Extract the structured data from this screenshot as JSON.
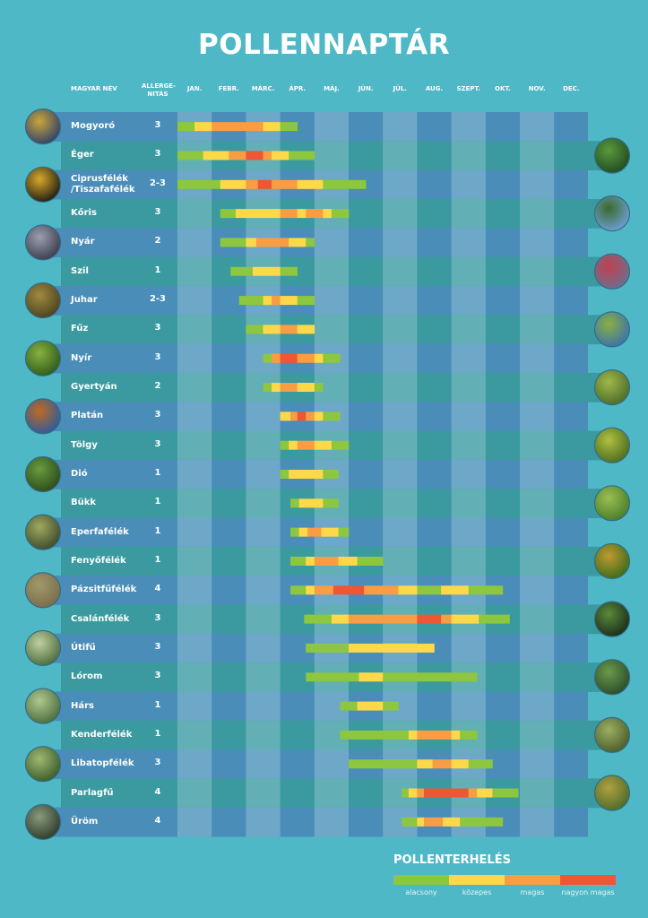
{
  "title": "POLLENNAPTÁR",
  "headers": {
    "name": "MAGYAR NÉV",
    "allergen_line1": "ALLERGE-",
    "allergen_line2": "NITÁS"
  },
  "colors": {
    "background": "#4fb8c6",
    "low": "#8dc63f",
    "medium": "#fdd94a",
    "high": "#f99d44",
    "very_high": "#ef5634"
  },
  "chart_data": {
    "type": "table",
    "title": "POLLENNAPTÁR",
    "months": [
      "JAN.",
      "FEBR.",
      "MÁRC.",
      "ÁPR.",
      "MÁJ.",
      "JÚN.",
      "JÚL.",
      "AUG.",
      "SZEPT.",
      "OKT.",
      "NOV.",
      "DEC."
    ],
    "level_names": [
      "alacsony",
      "közepes",
      "magas",
      "nagyon magas"
    ],
    "rows": [
      {
        "name": "Mogyoró",
        "allergenity": "3",
        "segments": [
          [
            0,
            0.5,
            1
          ],
          [
            0.5,
            1,
            2
          ],
          [
            1,
            2.5,
            3
          ],
          [
            2.5,
            3,
            2
          ],
          [
            3,
            3.5,
            1
          ]
        ]
      },
      {
        "name": "Éger",
        "allergenity": "3",
        "segments": [
          [
            0,
            0.75,
            1
          ],
          [
            0.75,
            1.5,
            2
          ],
          [
            1.5,
            2,
            3
          ],
          [
            2,
            2.5,
            4
          ],
          [
            2.5,
            2.75,
            3
          ],
          [
            2.75,
            3.25,
            2
          ],
          [
            3.25,
            4,
            1
          ]
        ]
      },
      {
        "name": "Ciprusfélék\n/Tiszafafélék",
        "allergenity": "2-3",
        "segments": [
          [
            0,
            1.25,
            1
          ],
          [
            1.25,
            2,
            2
          ],
          [
            2,
            2.35,
            3
          ],
          [
            2.35,
            2.75,
            4
          ],
          [
            2.75,
            3.5,
            3
          ],
          [
            3.5,
            4.25,
            2
          ],
          [
            4.25,
            5.5,
            1
          ]
        ]
      },
      {
        "name": "Kőris",
        "allergenity": "3",
        "segments": [
          [
            1.25,
            1.7,
            1
          ],
          [
            1.7,
            3,
            2
          ],
          [
            3,
            3.5,
            3
          ],
          [
            3.5,
            3.75,
            2
          ],
          [
            3.75,
            4.25,
            3
          ],
          [
            4.25,
            4.5,
            2
          ],
          [
            4.5,
            5,
            1
          ]
        ]
      },
      {
        "name": "Nyár",
        "allergenity": "2",
        "segments": [
          [
            1.25,
            2,
            1
          ],
          [
            2,
            2.3,
            2
          ],
          [
            2.3,
            3.25,
            3
          ],
          [
            3.25,
            3.75,
            2
          ],
          [
            3.75,
            4,
            1
          ]
        ]
      },
      {
        "name": "Szil",
        "allergenity": "1",
        "segments": [
          [
            1.55,
            2.2,
            1
          ],
          [
            2.2,
            3,
            2
          ],
          [
            3,
            3.5,
            1
          ]
        ]
      },
      {
        "name": "Juhar",
        "allergenity": "2-3",
        "segments": [
          [
            1.8,
            2.5,
            1
          ],
          [
            2.5,
            2.75,
            2
          ],
          [
            2.75,
            3,
            3
          ],
          [
            3,
            3.5,
            2
          ],
          [
            3.5,
            4,
            1
          ]
        ]
      },
      {
        "name": "Fűz",
        "allergenity": "3",
        "segments": [
          [
            2,
            2.5,
            1
          ],
          [
            2.5,
            3,
            2
          ],
          [
            3,
            3.5,
            3
          ],
          [
            3.5,
            4,
            2
          ]
        ]
      },
      {
        "name": "Nyír",
        "allergenity": "3",
        "segments": [
          [
            2.5,
            2.75,
            1
          ],
          [
            2.75,
            3,
            3
          ],
          [
            3,
            3.5,
            4
          ],
          [
            3.5,
            4,
            3
          ],
          [
            4,
            4.25,
            2
          ],
          [
            4.25,
            4.75,
            1
          ]
        ]
      },
      {
        "name": "Gyertyán",
        "allergenity": "2",
        "segments": [
          [
            2.5,
            2.75,
            1
          ],
          [
            2.75,
            3,
            2
          ],
          [
            3,
            3.5,
            3
          ],
          [
            3.5,
            4,
            2
          ],
          [
            4,
            4.25,
            1
          ]
        ]
      },
      {
        "name": "Platán",
        "allergenity": "3",
        "segments": [
          [
            3,
            3.3,
            2
          ],
          [
            3.3,
            3.5,
            3
          ],
          [
            3.5,
            3.75,
            4
          ],
          [
            3.75,
            4,
            3
          ],
          [
            4,
            4.25,
            2
          ],
          [
            4.25,
            4.75,
            1
          ]
        ]
      },
      {
        "name": "Tölgy",
        "allergenity": "3",
        "segments": [
          [
            3,
            3.25,
            1
          ],
          [
            3.25,
            3.5,
            2
          ],
          [
            3.5,
            4,
            3
          ],
          [
            4,
            4.5,
            2
          ],
          [
            4.5,
            5,
            1
          ]
        ]
      },
      {
        "name": "Dió",
        "allergenity": "1",
        "segments": [
          [
            3,
            3.25,
            1
          ],
          [
            3.25,
            4.25,
            2
          ],
          [
            4.25,
            4.7,
            1
          ]
        ]
      },
      {
        "name": "Bükk",
        "allergenity": "1",
        "segments": [
          [
            3.3,
            3.55,
            1
          ],
          [
            3.55,
            4.25,
            2
          ],
          [
            4.25,
            4.7,
            1
          ]
        ]
      },
      {
        "name": "Eperfafélék",
        "allergenity": "1",
        "segments": [
          [
            3.3,
            3.55,
            1
          ],
          [
            3.55,
            3.8,
            2
          ],
          [
            3.8,
            4.2,
            3
          ],
          [
            4.2,
            4.7,
            2
          ],
          [
            4.7,
            5,
            1
          ]
        ]
      },
      {
        "name": "Fenyőfélék",
        "allergenity": "1",
        "segments": [
          [
            3.3,
            3.75,
            1
          ],
          [
            3.75,
            4,
            2
          ],
          [
            4,
            4.7,
            3
          ],
          [
            4.7,
            5.25,
            2
          ],
          [
            5.25,
            6,
            1
          ]
        ]
      },
      {
        "name": "Pázsitfűfélék",
        "allergenity": "4",
        "segments": [
          [
            3.3,
            3.75,
            1
          ],
          [
            3.75,
            4,
            2
          ],
          [
            4,
            4.55,
            3
          ],
          [
            4.55,
            5.45,
            4
          ],
          [
            5.45,
            6.45,
            3
          ],
          [
            6.45,
            7,
            2
          ],
          [
            7,
            7.7,
            1
          ],
          [
            7.7,
            8.5,
            2
          ],
          [
            8.5,
            9.5,
            1
          ]
        ]
      },
      {
        "name": "Csalánfélék",
        "allergenity": "3",
        "segments": [
          [
            3.7,
            4.5,
            1
          ],
          [
            4.5,
            5,
            2
          ],
          [
            5,
            7,
            3
          ],
          [
            7,
            7.7,
            4
          ],
          [
            7.7,
            8,
            3
          ],
          [
            8,
            8.8,
            2
          ],
          [
            8.8,
            9.7,
            1
          ]
        ]
      },
      {
        "name": "Útifű",
        "allergenity": "3",
        "segments": [
          [
            3.75,
            5,
            1
          ],
          [
            5,
            7.5,
            2
          ]
        ]
      },
      {
        "name": "Lórom",
        "allergenity": "3",
        "segments": [
          [
            3.75,
            5.3,
            1
          ],
          [
            5.3,
            6,
            2
          ],
          [
            6,
            8.75,
            1
          ]
        ]
      },
      {
        "name": "Hárs",
        "allergenity": "1",
        "segments": [
          [
            4.75,
            5.25,
            1
          ],
          [
            5.25,
            6,
            2
          ],
          [
            6,
            6.45,
            1
          ]
        ]
      },
      {
        "name": "Kenderfélék",
        "allergenity": "1",
        "segments": [
          [
            4.75,
            6.75,
            1
          ],
          [
            6.75,
            7,
            2
          ],
          [
            7,
            8,
            3
          ],
          [
            8,
            8.25,
            2
          ],
          [
            8.25,
            8.75,
            1
          ]
        ]
      },
      {
        "name": "Libatopfélék",
        "allergenity": "3",
        "segments": [
          [
            5,
            7,
            1
          ],
          [
            7,
            7.45,
            2
          ],
          [
            7.45,
            8,
            3
          ],
          [
            8,
            8.5,
            2
          ],
          [
            8.5,
            9.2,
            1
          ]
        ]
      },
      {
        "name": "Parlagfű",
        "allergenity": "4",
        "segments": [
          [
            6.55,
            6.75,
            1
          ],
          [
            6.75,
            7,
            2
          ],
          [
            7,
            7.2,
            3
          ],
          [
            7.2,
            8.5,
            4
          ],
          [
            8.5,
            8.75,
            3
          ],
          [
            8.75,
            9.2,
            2
          ],
          [
            9.2,
            9.95,
            1
          ]
        ]
      },
      {
        "name": "Üröm",
        "allergenity": "4",
        "segments": [
          [
            6.55,
            7,
            1
          ],
          [
            7,
            7.2,
            2
          ],
          [
            7.2,
            7.75,
            3
          ],
          [
            7.75,
            8.25,
            2
          ],
          [
            8.25,
            9.5,
            1
          ]
        ]
      }
    ]
  },
  "legend": {
    "title": "POLLENTERHELÉS",
    "labels": [
      "alacsony",
      "közepes",
      "magas",
      "nagyon magas"
    ]
  }
}
